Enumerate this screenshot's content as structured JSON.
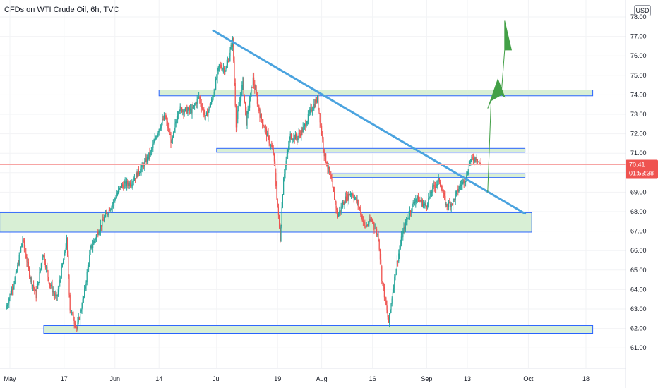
{
  "header": {
    "title": "CFDs on WTI Crude Oil, 6h, TVC",
    "currency": "USD"
  },
  "price_tag": {
    "price": "70.41",
    "countdown": "01:53:38"
  },
  "colors": {
    "up": "#26a69a",
    "down": "#ef5350",
    "trendline": "#4aa3df",
    "zone_fill": "#d8efd5",
    "zone_border": "#2962ff",
    "arrow": "#43a047",
    "price_tag": "#ef5350",
    "current_line": "#f7a5a4"
  },
  "chart_data": {
    "type": "candlestick",
    "title": "CFDs on WTI Crude Oil, 6h, TVC",
    "xlabel": "",
    "ylabel": "",
    "ylim": [
      60.4,
      78.6
    ],
    "y_ticks": [
      "61.00",
      "62.00",
      "63.00",
      "64.00",
      "65.00",
      "66.00",
      "67.00",
      "68.00",
      "69.00",
      "70.00",
      "71.00",
      "72.00",
      "73.00",
      "74.00",
      "75.00",
      "76.00",
      "77.00",
      "78.00"
    ],
    "x_ticks": [
      {
        "label": "May",
        "date": "2021-05-01"
      },
      {
        "label": "17",
        "date": "2021-05-17"
      },
      {
        "label": "Jun",
        "date": "2021-06-01"
      },
      {
        "label": "14",
        "date": "2021-06-14"
      },
      {
        "label": "Jul",
        "date": "2021-07-01"
      },
      {
        "label": "19",
        "date": "2021-07-19"
      },
      {
        "label": "Aug",
        "date": "2021-08-01"
      },
      {
        "label": "16",
        "date": "2021-08-16"
      },
      {
        "label": "Sep",
        "date": "2021-09-01"
      },
      {
        "label": "13",
        "date": "2021-09-13"
      },
      {
        "label": "Oct",
        "date": "2021-10-01"
      },
      {
        "label": "18",
        "date": "2021-10-18"
      }
    ],
    "price_path": [
      [
        "2021-04-30",
        63.0
      ],
      [
        "2021-05-03",
        64.7
      ],
      [
        "2021-05-05",
        66.6
      ],
      [
        "2021-05-07",
        64.8
      ],
      [
        "2021-05-09",
        63.7
      ],
      [
        "2021-05-11",
        65.9
      ],
      [
        "2021-05-13",
        64.3
      ],
      [
        "2021-05-15",
        63.5
      ],
      [
        "2021-05-18",
        66.5
      ],
      [
        "2021-05-19",
        63.0
      ],
      [
        "2021-05-21",
        62.0
      ],
      [
        "2021-05-23",
        63.6
      ],
      [
        "2021-05-25",
        66.0
      ],
      [
        "2021-05-27",
        66.9
      ],
      [
        "2021-05-29",
        67.6
      ],
      [
        "2021-06-01",
        68.6
      ],
      [
        "2021-06-03",
        69.3
      ],
      [
        "2021-06-06",
        69.5
      ],
      [
        "2021-06-08",
        70.0
      ],
      [
        "2021-06-10",
        70.5
      ],
      [
        "2021-06-12",
        71.1
      ],
      [
        "2021-06-14",
        72.2
      ],
      [
        "2021-06-16",
        72.9
      ],
      [
        "2021-06-18",
        71.5
      ],
      [
        "2021-06-20",
        73.3
      ],
      [
        "2021-06-22",
        73.2
      ],
      [
        "2021-06-24",
        73.2
      ],
      [
        "2021-06-26",
        73.9
      ],
      [
        "2021-06-28",
        72.8
      ],
      [
        "2021-06-30",
        73.8
      ],
      [
        "2021-07-02",
        75.5
      ],
      [
        "2021-07-04",
        75.3
      ],
      [
        "2021-07-06",
        76.8
      ],
      [
        "2021-07-07",
        72.5
      ],
      [
        "2021-07-09",
        74.7
      ],
      [
        "2021-07-10",
        72.6
      ],
      [
        "2021-07-12",
        74.8
      ],
      [
        "2021-07-14",
        73.0
      ],
      [
        "2021-07-16",
        72.0
      ],
      [
        "2021-07-18",
        71.0
      ],
      [
        "2021-07-20",
        66.6
      ],
      [
        "2021-07-21",
        69.8
      ],
      [
        "2021-07-23",
        71.9
      ],
      [
        "2021-07-25",
        71.8
      ],
      [
        "2021-07-27",
        72.3
      ],
      [
        "2021-07-29",
        73.2
      ],
      [
        "2021-07-31",
        73.8
      ],
      [
        "2021-08-02",
        71.0
      ],
      [
        "2021-08-04",
        69.6
      ],
      [
        "2021-08-06",
        67.8
      ],
      [
        "2021-08-08",
        68.6
      ],
      [
        "2021-08-10",
        69.0
      ],
      [
        "2021-08-12",
        68.4
      ],
      [
        "2021-08-14",
        67.2
      ],
      [
        "2021-08-16",
        67.6
      ],
      [
        "2021-08-18",
        66.7
      ],
      [
        "2021-08-19",
        64.6
      ],
      [
        "2021-08-21",
        62.3
      ],
      [
        "2021-08-23",
        64.9
      ],
      [
        "2021-08-25",
        66.8
      ],
      [
        "2021-08-27",
        67.9
      ],
      [
        "2021-08-29",
        68.7
      ],
      [
        "2021-09-01",
        68.3
      ],
      [
        "2021-09-03",
        69.2
      ],
      [
        "2021-09-05",
        69.6
      ],
      [
        "2021-09-07",
        68.3
      ],
      [
        "2021-09-09",
        68.5
      ],
      [
        "2021-09-11",
        69.3
      ],
      [
        "2021-09-13",
        69.8
      ],
      [
        "2021-09-14",
        70.6
      ],
      [
        "2021-09-16",
        70.8
      ],
      [
        "2021-09-17",
        70.41
      ]
    ],
    "series": [
      {
        "type": "trendline",
        "points": [
          [
            "2021-06-30",
            77.3
          ],
          [
            "2021-09-30",
            67.9
          ]
        ]
      },
      {
        "type": "zone",
        "from": "2021-06-14",
        "to": "2021-10-20",
        "range": [
          73.95,
          74.25
        ]
      },
      {
        "type": "zone",
        "from": "2021-07-01",
        "to": "2021-09-30",
        "range": [
          71.05,
          71.25
        ]
      },
      {
        "type": "zone",
        "from": "2021-08-04",
        "to": "2021-09-30",
        "range": [
          69.75,
          69.95
        ]
      },
      {
        "type": "zone",
        "from": "2021-04-28",
        "to": "2021-10-02",
        "range": [
          66.95,
          67.95
        ]
      },
      {
        "type": "zone",
        "from": "2021-05-11",
        "to": "2021-10-20",
        "range": [
          61.75,
          62.15
        ]
      },
      {
        "type": "arrow",
        "points": [
          [
            "2021-09-19",
            69.0
          ],
          [
            "2021-09-20",
            73.7
          ],
          [
            "2021-09-19",
            73.3
          ],
          [
            "2021-09-22",
            74.8
          ],
          [
            "2021-09-24",
            73.9
          ],
          [
            "2021-09-23",
            74.0
          ],
          [
            "2021-09-24",
            76.3
          ],
          [
            "2021-09-24",
            77.8
          ],
          [
            "2021-09-26",
            76.3
          ],
          [
            "2021-09-24",
            76.3
          ],
          [
            "2021-09-23",
            74.0
          ],
          [
            "2021-09-20",
            73.7
          ]
        ]
      }
    ],
    "last_price": 70.41
  }
}
